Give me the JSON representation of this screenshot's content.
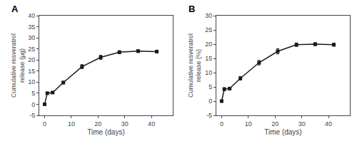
{
  "chart_data": [
    {
      "type": "line",
      "annotations": [
        "A"
      ],
      "xlabel": "Time (days)",
      "ylabel": "Cumulative resveratrol\nrelease (μg)",
      "x": [
        0,
        1,
        3,
        7,
        14,
        21,
        28,
        35,
        42
      ],
      "values": [
        0.0,
        5.0,
        5.3,
        9.8,
        17.0,
        21.2,
        23.5,
        24.0,
        23.8
      ],
      "yerr": [
        0.15,
        0.5,
        0.5,
        0.6,
        0.9,
        0.9,
        0.7,
        0.6,
        0.6
      ],
      "color": "#1a1a1a",
      "marker": "square",
      "xlim": [
        -2,
        48
      ],
      "ylim": [
        -5,
        40
      ],
      "xticks": [
        0,
        10,
        20,
        30,
        40
      ],
      "yticks": [
        -5,
        0,
        5,
        10,
        15,
        20,
        25,
        30,
        35,
        40
      ],
      "grid": false
    },
    {
      "type": "line",
      "annotations": [
        "B"
      ],
      "xlabel": "Time (days)",
      "ylabel": "Cumulative resveratrol\nrelease (%)",
      "x": [
        0,
        1,
        3,
        7,
        14,
        21,
        28,
        35,
        42
      ],
      "values": [
        0.0,
        4.2,
        4.4,
        8.0,
        13.5,
        17.5,
        19.8,
        20.0,
        19.8
      ],
      "yerr": [
        0.15,
        0.5,
        0.45,
        0.6,
        0.8,
        0.9,
        0.6,
        0.5,
        0.5
      ],
      "color": "#1a1a1a",
      "marker": "square",
      "xlim": [
        -2,
        48
      ],
      "ylim": [
        -5,
        30
      ],
      "xticks": [
        0,
        10,
        20,
        30,
        40
      ],
      "yticks": [
        -5,
        0,
        5,
        10,
        15,
        20,
        25,
        30
      ],
      "grid": false
    }
  ]
}
